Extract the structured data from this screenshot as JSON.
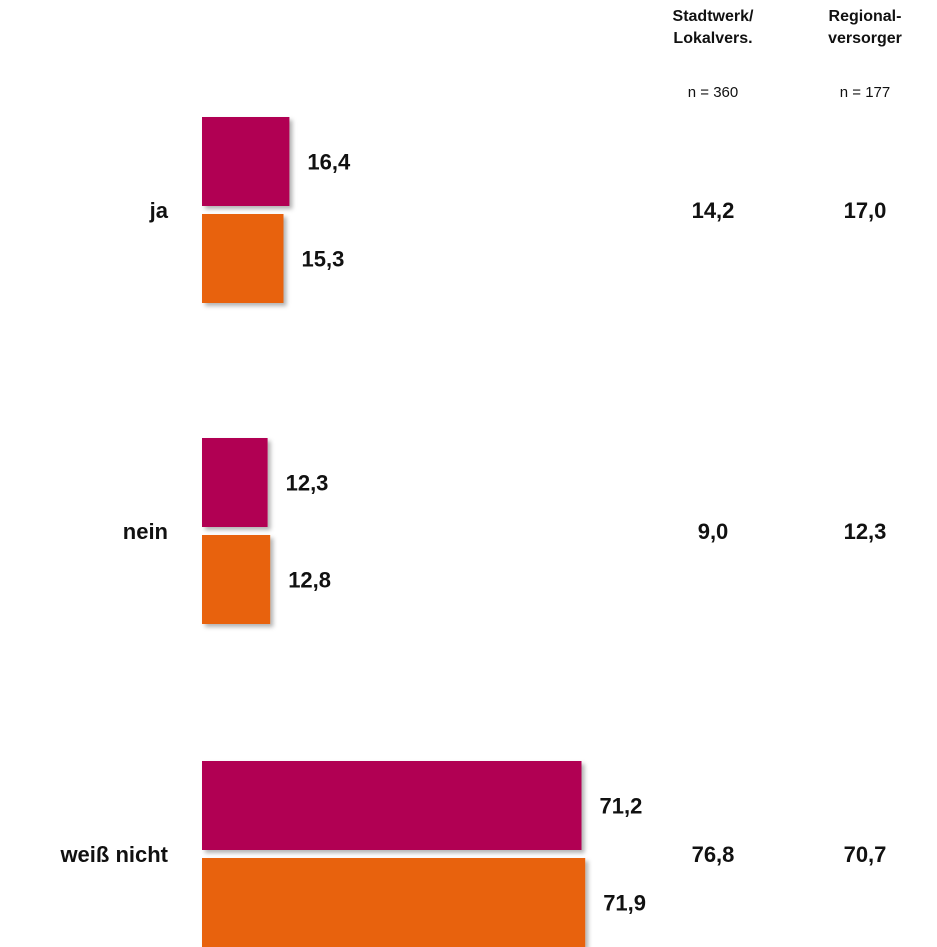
{
  "columns": [
    {
      "header": "Stadtwerk/\nLokalvers.",
      "n": "n = 360"
    },
    {
      "header": "Regional-\nversorger",
      "n": "n = 177"
    }
  ],
  "chart_data": {
    "type": "bar",
    "orientation": "horizontal",
    "categories": [
      "ja",
      "nein",
      "weiß nicht"
    ],
    "series": [
      {
        "values": [
          16.4,
          12.3,
          71.2
        ],
        "labels": [
          "16,4",
          "12,3",
          "71,2"
        ],
        "color": "#B10052"
      },
      {
        "values": [
          15.3,
          12.8,
          71.9
        ],
        "labels": [
          "15,3",
          "12,8",
          "71,9"
        ],
        "color": "#E8620A"
      }
    ],
    "side_values": [
      {
        "values": [
          "14,2",
          "9,0",
          "76,8"
        ]
      },
      {
        "values": [
          "17,0",
          "12,3",
          "70,7"
        ]
      }
    ],
    "xlim": [
      0,
      80
    ],
    "grid": false
  }
}
